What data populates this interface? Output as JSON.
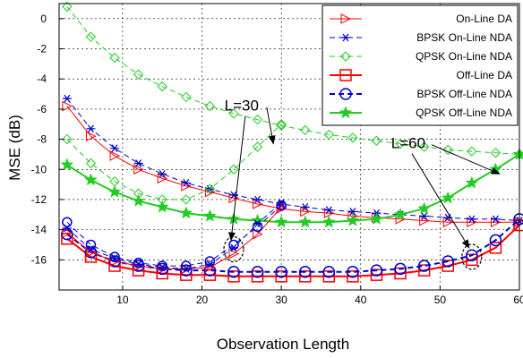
{
  "chart_data": {
    "type": "line",
    "title": "",
    "xlabel": "Observation Length",
    "ylabel": "MSE (dB)",
    "xlim": [
      2,
      60
    ],
    "ylim": [
      -18,
      1
    ],
    "xticks": [
      10,
      20,
      30,
      40,
      50,
      60
    ],
    "yticks": [
      0,
      -2,
      -4,
      -6,
      -8,
      -10,
      -12,
      -14,
      -16
    ],
    "grid": true,
    "legend_position": "top-right",
    "x": [
      3,
      6,
      9,
      12,
      15,
      18,
      21,
      24,
      27,
      30,
      33,
      36,
      39,
      42,
      45,
      48,
      51,
      54,
      57,
      60
    ],
    "series": [
      {
        "name": "On-Line DA",
        "color": "#ff0000",
        "line_style": "solid",
        "line_width": 1,
        "marker": "triangle-right",
        "values": [
          -5.8,
          -7.8,
          -9.1,
          -10.0,
          -10.6,
          -11.1,
          -11.5,
          -11.9,
          -12.3,
          -12.6,
          -12.8,
          -12.9,
          -13.1,
          -13.2,
          -13.3,
          -13.4,
          -13.5,
          -13.5,
          -13.5,
          -13.5
        ]
      },
      {
        "name": "BPSK On-Line NDA",
        "color": "#0000cc",
        "line_style": "dashed",
        "line_width": 1,
        "marker": "asterisk",
        "values": [
          -5.3,
          -7.3,
          -8.6,
          -9.6,
          -10.3,
          -10.9,
          -11.3,
          -11.7,
          -12.0,
          -12.3,
          -12.5,
          -12.7,
          -12.8,
          -12.9,
          -13.0,
          -13.1,
          -13.2,
          -13.3,
          -13.3,
          -13.4
        ]
      },
      {
        "name": "QPSK On-Line NDA",
        "color": "#22cc22",
        "line_style": "dashed",
        "line_width": 1,
        "marker": "diamond",
        "values": [
          0.8,
          -1.2,
          -2.6,
          -3.7,
          -4.5,
          -5.2,
          -5.8,
          -6.3,
          -6.7,
          -7.1,
          -7.4,
          -7.7,
          -7.9,
          -8.1,
          -8.3,
          -8.5,
          -8.7,
          -8.8,
          -8.9,
          -9.0
        ]
      },
      {
        "name": "Off-Line DA",
        "color": "#ff0000",
        "line_style": "solid",
        "line_width": 2,
        "marker": "square",
        "values": [
          -14.6,
          -15.8,
          -16.4,
          -16.7,
          -16.9,
          -17.0,
          -17.0,
          -17.1,
          -17.1,
          -17.1,
          -17.1,
          -17.1,
          -17.1,
          -17.0,
          -16.9,
          -16.7,
          -16.4,
          -16.0,
          -15.2,
          -13.7
        ]
      },
      {
        "name": "BPSK Off-Line NDA",
        "color": "#0000cc",
        "line_style": "dashed",
        "line_width": 2,
        "marker": "circle",
        "values": [
          -14.3,
          -15.5,
          -16.1,
          -16.4,
          -16.6,
          -16.7,
          -16.7,
          -16.8,
          -16.8,
          -16.8,
          -16.8,
          -16.8,
          -16.8,
          -16.7,
          -16.6,
          -16.4,
          -16.1,
          -15.7,
          -14.7,
          -13.3
        ]
      },
      {
        "name": "QPSK Off-Line NDA",
        "color": "#22cc22",
        "line_style": "solid",
        "line_width": 2,
        "marker": "star",
        "values": [
          -9.7,
          -10.7,
          -11.5,
          -12.1,
          -12.5,
          -12.9,
          -13.1,
          -13.3,
          -13.4,
          -13.5,
          -13.5,
          -13.5,
          -13.4,
          -13.3,
          -13.0,
          -12.6,
          -11.9,
          -10.9,
          -10.0,
          -9.0
        ]
      }
    ],
    "extra_series": [
      {
        "label_ref": "L=30",
        "color": "#ff0000",
        "line_style": "solid",
        "line_width": 1,
        "marker": "triangle-right",
        "x": [
          3,
          6,
          9,
          12,
          15,
          18,
          21,
          24,
          27,
          30
        ],
        "values": [
          -14.2,
          -15.5,
          -16.1,
          -16.4,
          -16.6,
          -16.6,
          -16.5,
          -15.6,
          -14.3,
          -12.5
        ]
      },
      {
        "label_ref": "L=30",
        "color": "#0000cc",
        "line_style": "dashed",
        "line_width": 1,
        "marker": "asterisk",
        "x": [
          3,
          6,
          9,
          12,
          15,
          18,
          21,
          24,
          27,
          30
        ],
        "values": [
          -13.9,
          -15.3,
          -15.9,
          -16.3,
          -16.5,
          -16.6,
          -16.3,
          -15.2,
          -13.6,
          -12.2
        ]
      },
      {
        "label_ref": "L=30",
        "color": "#0000cc",
        "line_style": "dashed",
        "line_width": 1,
        "marker": "circle",
        "x": [
          3,
          6,
          9,
          12,
          15,
          18,
          21,
          24,
          27,
          30
        ],
        "values": [
          -13.5,
          -15.0,
          -15.8,
          -16.2,
          -16.4,
          -16.4,
          -16.1,
          -15.0,
          -13.8,
          -12.4
        ]
      },
      {
        "label_ref": "L=30",
        "color": "#22cc22",
        "line_style": "dashed",
        "line_width": 1,
        "marker": "diamond",
        "x": [
          3,
          6,
          9,
          12,
          15,
          18,
          21,
          24,
          27,
          30
        ],
        "values": [
          -8.0,
          -9.6,
          -10.8,
          -11.6,
          -12.0,
          -12.0,
          -11.3,
          -10.0,
          -8.5,
          -7.0
        ]
      }
    ],
    "annotations": [
      {
        "text": "L=30",
        "target_x": 24,
        "target_y": -15.3,
        "label_x": 25,
        "label_y": -6.1
      },
      {
        "text": "L=60",
        "target_x": 54,
        "target_y": -15.8,
        "label_x": 46,
        "label_y": -8.6
      }
    ]
  }
}
